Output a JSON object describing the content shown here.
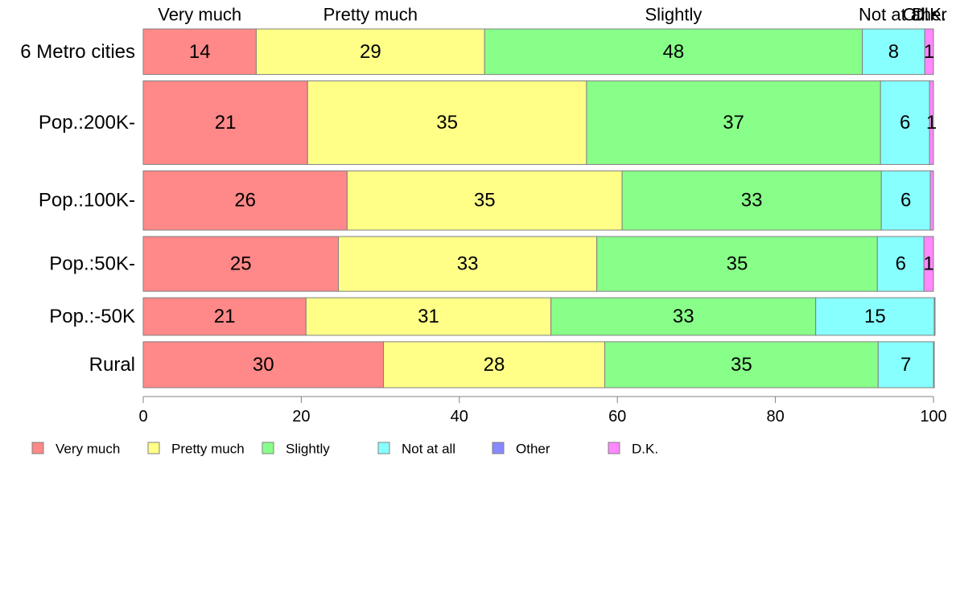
{
  "chart_data": {
    "type": "bar",
    "orientation": "horizontal",
    "stacked": true,
    "categories": [
      "6 Metro cities",
      "Pop.:200K-",
      "Pop.:100K-",
      "Pop.:50K-",
      "Pop.:-50K",
      "Rural"
    ],
    "category_shares": [
      0.103,
      0.189,
      0.134,
      0.124,
      0.085,
      0.104
    ],
    "series": [
      {
        "name": "Very much",
        "color": "#ff8888",
        "values": [
          14.3,
          20.8,
          25.8,
          24.7,
          20.6,
          30.4
        ]
      },
      {
        "name": "Pretty much",
        "color": "#ffff88",
        "values": [
          28.9,
          35.3,
          34.8,
          32.7,
          31.0,
          28.0
        ]
      },
      {
        "name": "Slightly",
        "color": "#88ff88",
        "values": [
          47.8,
          37.2,
          32.8,
          35.5,
          33.5,
          34.6
        ]
      },
      {
        "name": "Not at all",
        "color": "#88ffff",
        "values": [
          7.9,
          6.2,
          6.2,
          5.9,
          15.0,
          7.0
        ]
      },
      {
        "name": "Other",
        "color": "#8888ff",
        "values": [
          0.0,
          0.0,
          0.0,
          0.0,
          0.0,
          0.0
        ]
      },
      {
        "name": "D.K.",
        "color": "#ff88ff",
        "values": [
          1.1,
          0.5,
          0.4,
          1.2,
          0.1,
          0.1
        ]
      }
    ],
    "data_labels": [
      [
        "14",
        "29",
        "48",
        "8",
        "",
        "1"
      ],
      [
        "21",
        "35",
        "37",
        "6",
        "",
        "1"
      ],
      [
        "26",
        "35",
        "33",
        "6",
        "",
        ""
      ],
      [
        "25",
        "33",
        "35",
        "6",
        "",
        "1"
      ],
      [
        "21",
        "31",
        "33",
        "15",
        "",
        ""
      ],
      [
        "30",
        "28",
        "35",
        "7",
        "",
        ""
      ]
    ],
    "top_labels": [
      "Very much",
      "Pretty much",
      "Slightly",
      "Not at all",
      "Other",
      "D.K."
    ],
    "x_ticks": [
      0,
      20,
      40,
      60,
      80,
      100
    ],
    "xlim": [
      0,
      100
    ],
    "title": "",
    "xlabel": "",
    "ylabel": "",
    "grid": false,
    "legend_position": "bottom"
  }
}
